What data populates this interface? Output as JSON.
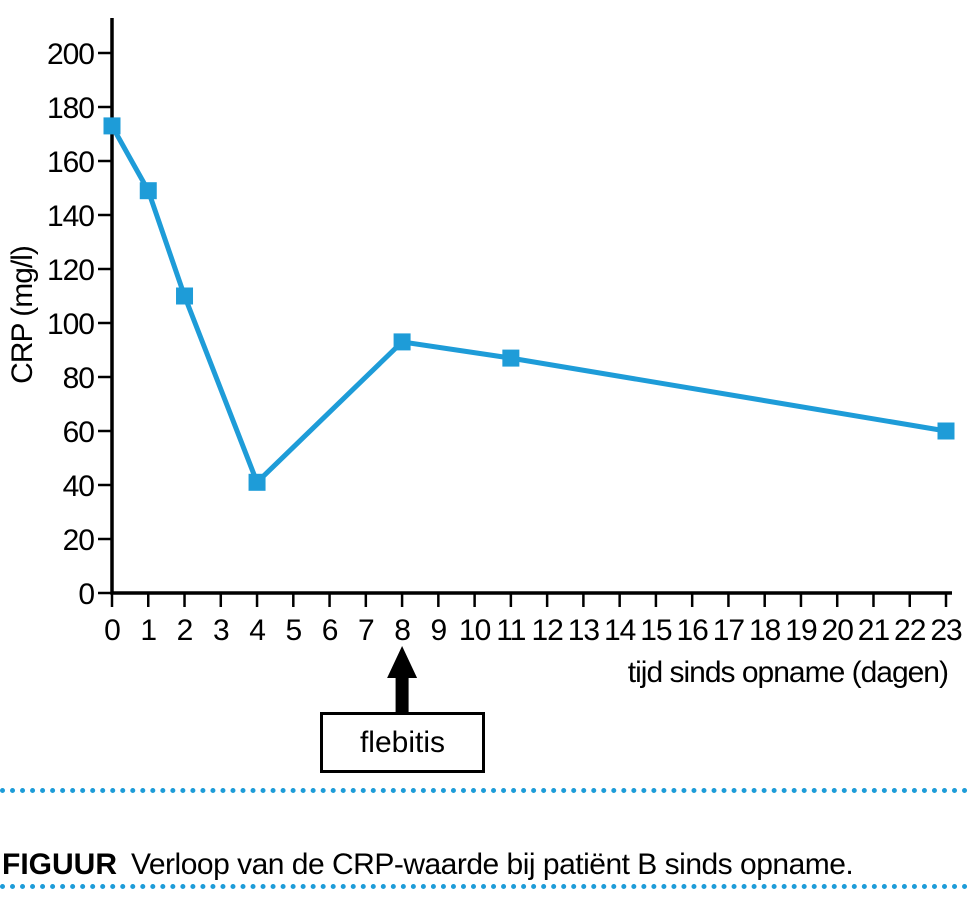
{
  "chart_data": {
    "type": "line",
    "title": "",
    "xlabel": "tijd sinds opname (dagen)",
    "ylabel": "CRP (mg/l)",
    "x": [
      0,
      1,
      2,
      4,
      8,
      11,
      23
    ],
    "values": [
      173,
      149,
      110,
      41,
      93,
      87,
      60
    ],
    "series_name": "CRP",
    "xlim": [
      0,
      23
    ],
    "ylim": [
      0,
      200
    ],
    "x_ticks": [
      0,
      1,
      2,
      3,
      4,
      5,
      6,
      7,
      8,
      9,
      10,
      11,
      12,
      13,
      14,
      15,
      16,
      17,
      18,
      19,
      20,
      21,
      22,
      23
    ],
    "y_ticks": [
      0,
      20,
      40,
      60,
      80,
      100,
      120,
      140,
      160,
      180,
      200
    ],
    "grid": false,
    "legend": "none",
    "marker": "square",
    "annotation": {
      "label": "flebitis",
      "x": 8
    }
  },
  "caption": {
    "tag": "FIGUUR",
    "text": "Verloop van de CRP-waarde bij patiënt B sinds opname."
  },
  "colors": {
    "accent": "#1e9cd8",
    "axis": "#000000",
    "annotation_arrow": "#000000"
  }
}
